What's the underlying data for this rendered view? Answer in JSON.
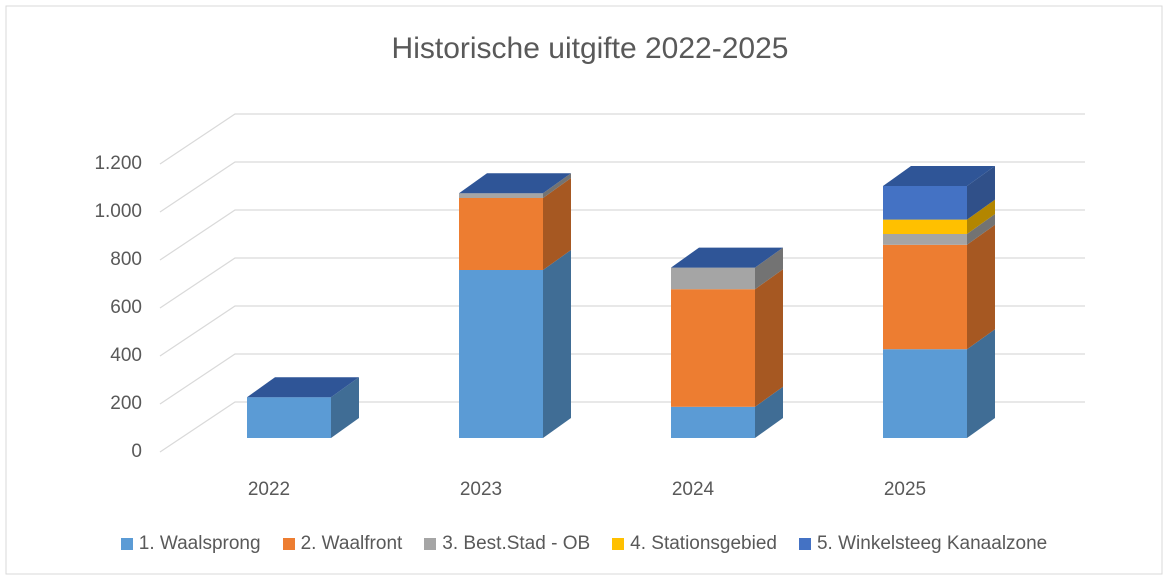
{
  "chart_data": {
    "type": "bar3d_stacked",
    "title": "Historische uitgifte 2022-2025",
    "categories": [
      "2022",
      "2023",
      "2024",
      "2025"
    ],
    "series": [
      {
        "name": "1. Waalsprong",
        "color": "#5b9bd5",
        "values": [
          170,
          700,
          130,
          370
        ]
      },
      {
        "name": "2. Waalfront",
        "color": "#ed7d31",
        "values": [
          0,
          300,
          490,
          435
        ]
      },
      {
        "name": "3. Best.Stad - OB",
        "color": "#a5a5a5",
        "values": [
          0,
          20,
          90,
          45
        ]
      },
      {
        "name": "4. Stationsgebied",
        "color": "#ffc000",
        "values": [
          0,
          0,
          0,
          60
        ]
      },
      {
        "name": "5. Winkelsteeg Kanaalzone",
        "color": "#4472c4",
        "values": [
          0,
          0,
          0,
          140
        ]
      }
    ],
    "ylim": [
      0,
      1200
    ],
    "yticks": [
      0,
      200,
      400,
      600,
      800,
      {
        "value": 1000,
        "label": "1.000"
      },
      {
        "value": 1200,
        "label": "1.200"
      }
    ],
    "grid": true,
    "legend": "bottom"
  }
}
